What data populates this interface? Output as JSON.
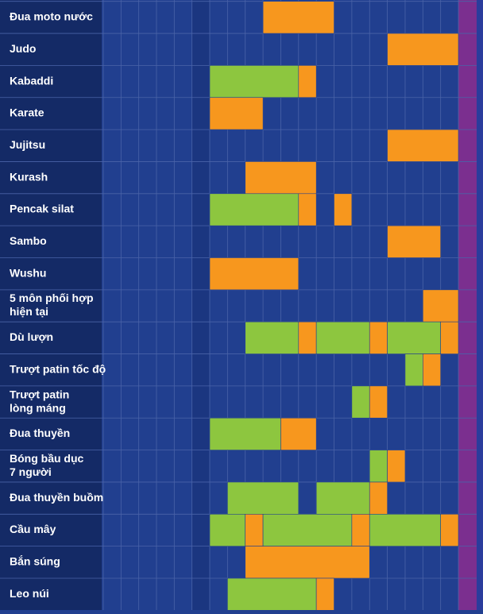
{
  "schedule": {
    "rows": [
      {
        "label": [
          "Đua moto nước"
        ],
        "blocks": [
          {
            "from": 3,
            "to": 6,
            "color": "#f7971e"
          }
        ]
      },
      {
        "label": [
          "Judo"
        ],
        "blocks": [
          {
            "from": 10,
            "to": 13,
            "color": "#f7971e"
          }
        ]
      },
      {
        "label": [
          "Kabaddi"
        ],
        "blocks": [
          {
            "from": 0,
            "to": 4,
            "color": "#8dc63f"
          },
          {
            "from": 5,
            "to": 5,
            "color": "#f7971e"
          }
        ]
      },
      {
        "label": [
          "Karate"
        ],
        "blocks": [
          {
            "from": 0,
            "to": 2,
            "color": "#f7971e"
          }
        ]
      },
      {
        "label": [
          "Jujitsu"
        ],
        "blocks": [
          {
            "from": 10,
            "to": 13,
            "color": "#f7971e"
          }
        ]
      },
      {
        "label": [
          "Kurash"
        ],
        "blocks": [
          {
            "from": 2,
            "to": 5,
            "color": "#f7971e"
          }
        ]
      },
      {
        "label": [
          "Pencak silat"
        ],
        "blocks": [
          {
            "from": 0,
            "to": 4,
            "color": "#8dc63f"
          },
          {
            "from": 5,
            "to": 5,
            "color": "#f7971e"
          },
          {
            "from": 7,
            "to": 7,
            "color": "#f7971e"
          }
        ]
      },
      {
        "label": [
          "Sambo"
        ],
        "blocks": [
          {
            "from": 10,
            "to": 12,
            "color": "#f7971e"
          }
        ]
      },
      {
        "label": [
          "Wushu"
        ],
        "blocks": [
          {
            "from": 0,
            "to": 4,
            "color": "#f7971e"
          }
        ]
      },
      {
        "label": [
          "5 môn phối hợp",
          "hiện tại"
        ],
        "blocks": [
          {
            "from": 12,
            "to": 13,
            "color": "#f7971e"
          }
        ]
      },
      {
        "label": [
          "Dù lượn"
        ],
        "blocks": [
          {
            "from": 2,
            "to": 4,
            "color": "#8dc63f"
          },
          {
            "from": 5,
            "to": 5,
            "color": "#f7971e"
          },
          {
            "from": 6,
            "to": 8,
            "color": "#8dc63f"
          },
          {
            "from": 9,
            "to": 9,
            "color": "#f7971e"
          },
          {
            "from": 10,
            "to": 12,
            "color": "#8dc63f"
          },
          {
            "from": 13,
            "to": 13,
            "color": "#f7971e"
          }
        ]
      },
      {
        "label": [
          "Trượt patin tốc độ"
        ],
        "blocks": [
          {
            "from": 11,
            "to": 11,
            "color": "#8dc63f"
          },
          {
            "from": 12,
            "to": 12,
            "color": "#f7971e"
          }
        ]
      },
      {
        "label": [
          "Trượt patin",
          "lòng máng"
        ],
        "blocks": [
          {
            "from": 8,
            "to": 8,
            "color": "#8dc63f"
          },
          {
            "from": 9,
            "to": 9,
            "color": "#f7971e"
          }
        ]
      },
      {
        "label": [
          "Đua thuyền"
        ],
        "blocks": [
          {
            "from": 0,
            "to": 3,
            "color": "#8dc63f"
          },
          {
            "from": 4,
            "to": 5,
            "color": "#f7971e"
          }
        ]
      },
      {
        "label": [
          "Bóng bầu dục",
          "7 người"
        ],
        "blocks": [
          {
            "from": 9,
            "to": 9,
            "color": "#8dc63f"
          },
          {
            "from": 10,
            "to": 10,
            "color": "#f7971e"
          }
        ]
      },
      {
        "label": [
          "Đua thuyền buồm"
        ],
        "blocks": [
          {
            "from": 1,
            "to": 4,
            "color": "#8dc63f"
          },
          {
            "from": 6,
            "to": 8,
            "color": "#8dc63f"
          },
          {
            "from": 9,
            "to": 9,
            "color": "#f7971e"
          }
        ]
      },
      {
        "label": [
          "Cầu mây"
        ],
        "blocks": [
          {
            "from": 0,
            "to": 1,
            "color": "#8dc63f"
          },
          {
            "from": 2,
            "to": 2,
            "color": "#f7971e"
          },
          {
            "from": 3,
            "to": 7,
            "color": "#8dc63f"
          },
          {
            "from": 8,
            "to": 8,
            "color": "#f7971e"
          },
          {
            "from": 9,
            "to": 12,
            "color": "#8dc63f"
          },
          {
            "from": 13,
            "to": 13,
            "color": "#f7971e"
          }
        ]
      },
      {
        "label": [
          "Bắn súng"
        ],
        "blocks": [
          {
            "from": 2,
            "to": 8,
            "color": "#f7971e"
          }
        ]
      },
      {
        "label": [
          "Leo núi"
        ],
        "blocks": [
          {
            "from": 1,
            "to": 5,
            "color": "#8dc63f"
          },
          {
            "from": 6,
            "to": 6,
            "color": "#f7971e"
          }
        ]
      }
    ]
  }
}
